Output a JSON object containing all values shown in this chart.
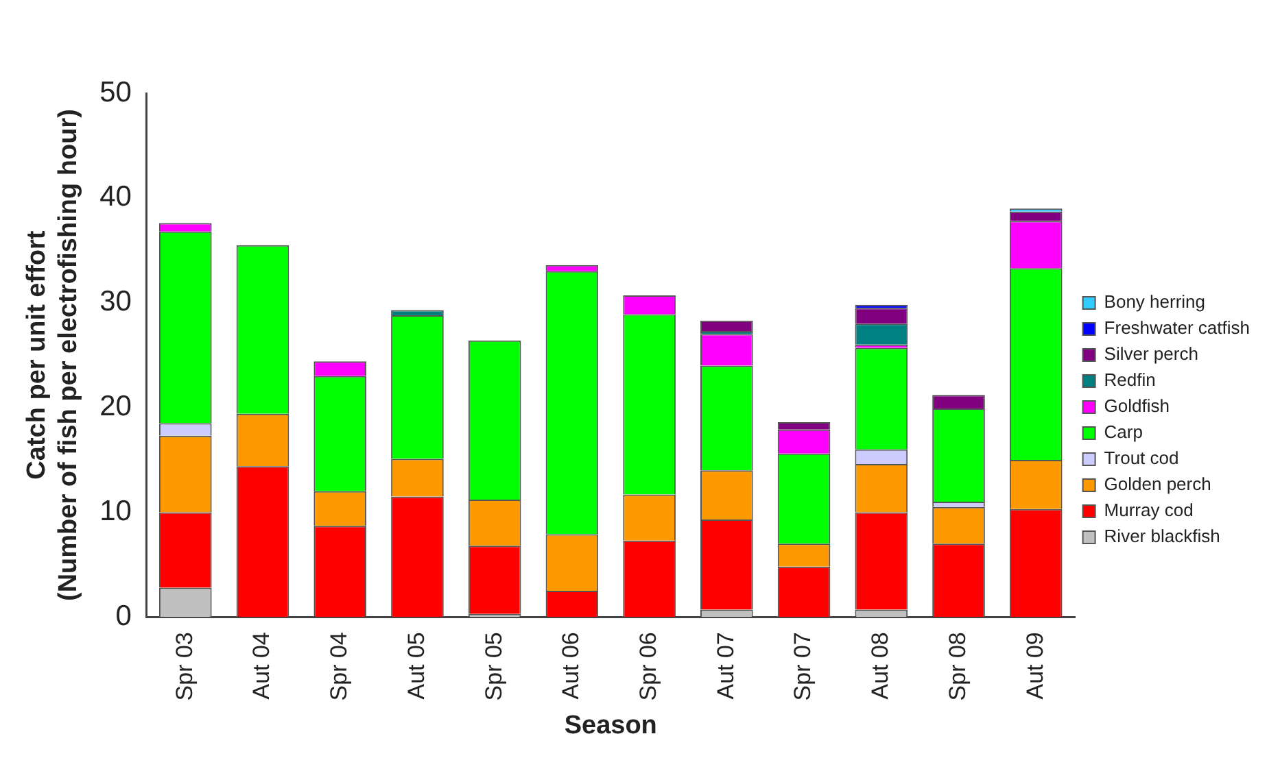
{
  "chart_data": {
    "type": "bar",
    "stacked": true,
    "xlabel": "Season",
    "ylabel": "Catch per unit effort\n(Number of fish per electrofishing hour)",
    "categories": [
      "Spr 03",
      "Aut 04",
      "Spr 04",
      "Aut 05",
      "Spr 05",
      "Aut 06",
      "Spr 06",
      "Aut 07",
      "Spr 07",
      "Aut 08",
      "Spr 08",
      "Aut 09"
    ],
    "ylim": [
      0,
      50
    ],
    "yticks": [
      0,
      10,
      20,
      30,
      40,
      50
    ],
    "grid": false,
    "legend": "right",
    "series": [
      {
        "name": "River blackfish",
        "color": "#c0c0c0",
        "values": [
          2.8,
          0,
          0,
          0,
          0.3,
          0,
          0,
          0.7,
          0,
          0.7,
          0,
          0
        ]
      },
      {
        "name": "Murray cod",
        "color": "#ff0000",
        "values": [
          7.2,
          14.4,
          8.7,
          11.5,
          6.5,
          2.5,
          7.3,
          8.6,
          4.8,
          9.3,
          7.0,
          10.3
        ]
      },
      {
        "name": "Golden perch",
        "color": "#ff9900",
        "values": [
          7.3,
          5.0,
          3.3,
          3.6,
          4.4,
          5.4,
          4.4,
          4.7,
          2.2,
          4.6,
          3.5,
          4.7
        ]
      },
      {
        "name": "Trout cod",
        "color": "#ccccff",
        "values": [
          1.2,
          0,
          0,
          0,
          0,
          0,
          0,
          0,
          0,
          1.4,
          0.5,
          0
        ]
      },
      {
        "name": "Carp",
        "color": "#00ff00",
        "values": [
          18.3,
          16.1,
          11.0,
          13.7,
          15.2,
          25.1,
          17.2,
          10.0,
          8.6,
          9.7,
          8.9,
          18.3
        ]
      },
      {
        "name": "Goldfish",
        "color": "#ff00ff",
        "values": [
          0.8,
          0,
          1.4,
          0,
          0,
          0.6,
          1.8,
          3.0,
          2.3,
          0.3,
          0,
          4.5
        ]
      },
      {
        "name": "Redfin",
        "color": "#008080",
        "values": [
          0,
          0,
          0,
          0.5,
          0,
          0,
          0,
          0.3,
          0,
          2.0,
          0,
          0
        ]
      },
      {
        "name": "Silver perch",
        "color": "#800080",
        "values": [
          0,
          0,
          0,
          0,
          0,
          0,
          0,
          1.0,
          0.7,
          1.5,
          1.3,
          0.9
        ]
      },
      {
        "name": "Freshwater catfish",
        "color": "#0000ff",
        "values": [
          0,
          0,
          0,
          0,
          0,
          0,
          0,
          0,
          0,
          0.3,
          0,
          0
        ]
      },
      {
        "name": "Bony herring",
        "color": "#33ccff",
        "values": [
          0,
          0,
          0,
          0,
          0,
          0,
          0,
          0,
          0,
          0,
          0,
          0.3
        ]
      }
    ]
  }
}
